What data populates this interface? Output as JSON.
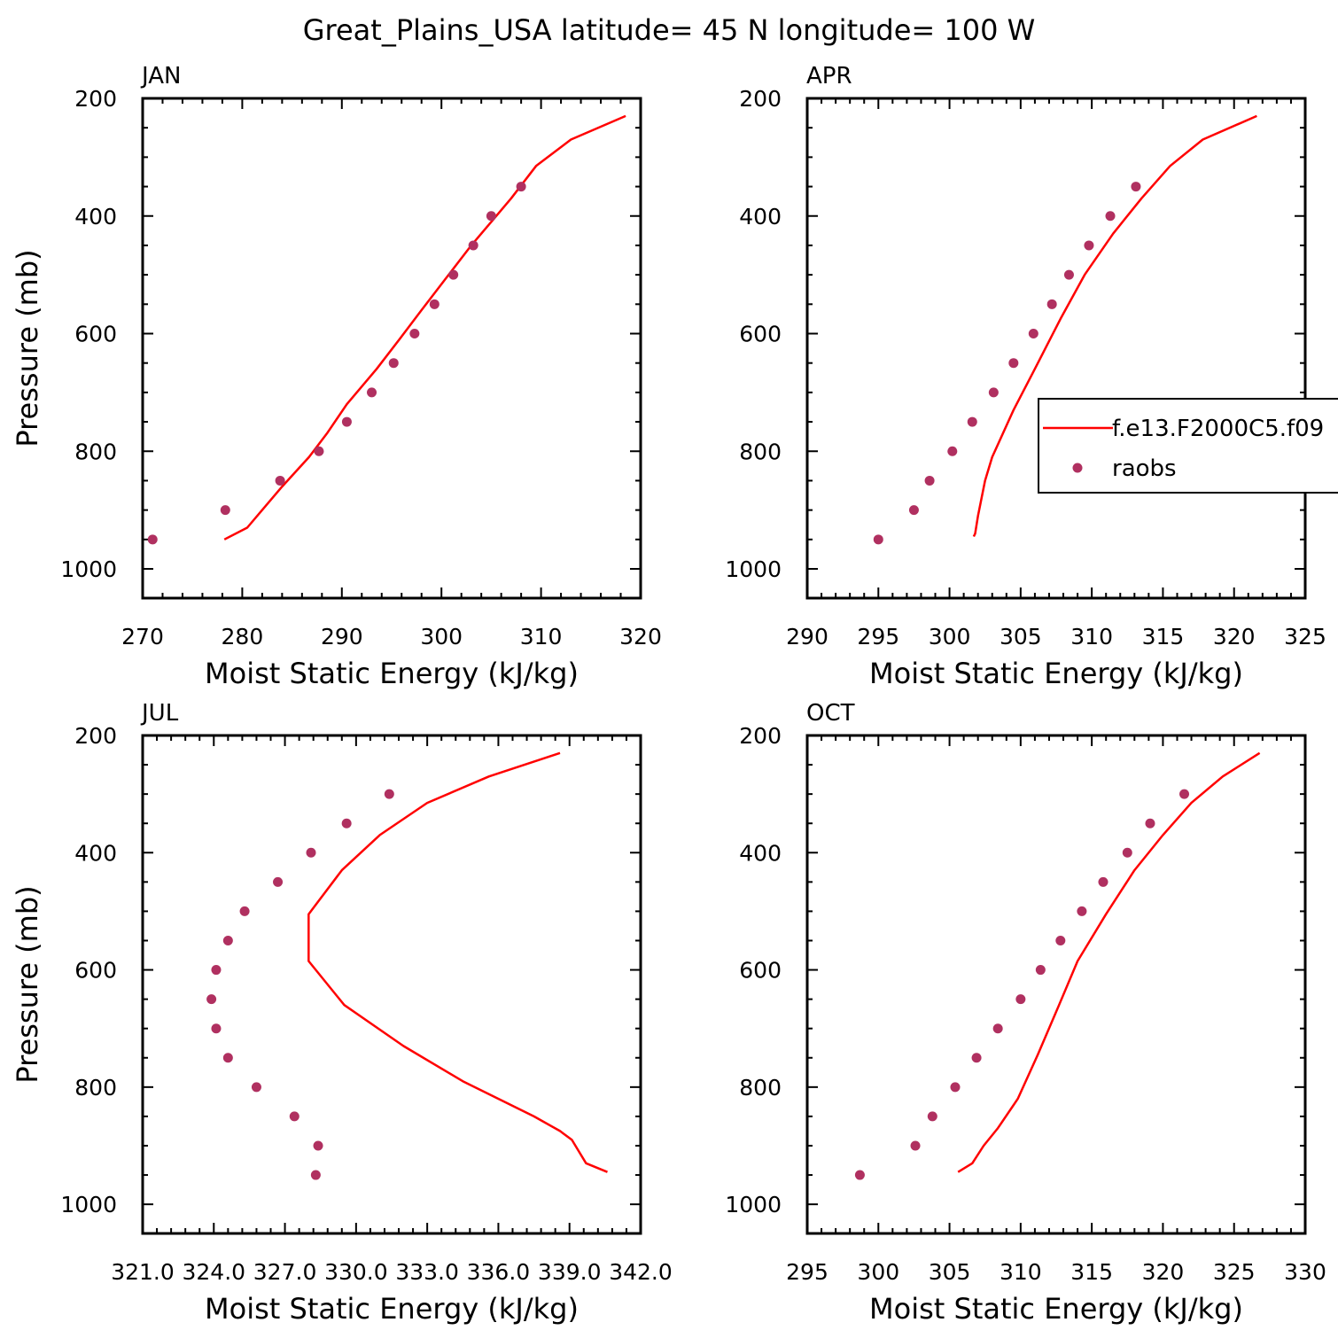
{
  "figure_title": "Great_Plains_USA  latitude= 45 N longitude= 100 W",
  "colors": {
    "model": "#ff0000",
    "obs": "#b03060",
    "axis": "#000000"
  },
  "legend": {
    "model_label": "f.e13.F2000C5.f09",
    "obs_label": "raobs"
  },
  "chart_data": [
    {
      "type": "line",
      "panel": "JAN",
      "xlabel": "Moist Static Energy (kJ/kg)",
      "ylabel": "Pressure (mb)",
      "xlim": [
        270,
        320
      ],
      "ylim": [
        1000,
        200
      ],
      "xticks": [
        "270",
        "280",
        "290",
        "300",
        "310",
        "320"
      ],
      "yticks": [
        "200",
        "400",
        "600",
        "800",
        "1000"
      ],
      "series": [
        {
          "name": "f.e13.F2000C5.f09",
          "kind": "line",
          "x": [
            318.5,
            313.0,
            309.5,
            307.0,
            305.0,
            303.0,
            300.5,
            298.0,
            296.0,
            293.5,
            290.5,
            288.5,
            286.7,
            284.0,
            282.0,
            280.5,
            278.2
          ],
          "y": [
            230,
            270,
            315,
            370,
            410,
            450,
            505,
            560,
            605,
            660,
            720,
            770,
            810,
            860,
            900,
            930,
            950
          ]
        },
        {
          "name": "raobs",
          "kind": "scatter",
          "x": [
            308.0,
            305.0,
            303.2,
            301.2,
            299.3,
            297.3,
            295.2,
            293.0,
            290.5,
            287.7,
            283.8,
            278.3,
            271.0
          ],
          "y": [
            350,
            400,
            450,
            500,
            550,
            600,
            650,
            700,
            750,
            800,
            850,
            900,
            950
          ]
        }
      ]
    },
    {
      "type": "line",
      "panel": "APR",
      "xlabel": "Moist Static Energy (kJ/kg)",
      "ylabel": "",
      "xlim": [
        290,
        325
      ],
      "ylim": [
        1000,
        200
      ],
      "xticks": [
        "290",
        "295",
        "300",
        "305",
        "310",
        "315",
        "320",
        "325"
      ],
      "yticks": [
        "200",
        "400",
        "600",
        "800",
        "1000"
      ],
      "legend_shown": true,
      "series": [
        {
          "name": "f.e13.F2000C5.f09",
          "kind": "line",
          "x": [
            321.6,
            317.8,
            315.5,
            313.5,
            311.5,
            309.5,
            307.8,
            306.0,
            304.5,
            303.0,
            302.5,
            302.0,
            301.8,
            301.7
          ],
          "y": [
            230,
            270,
            315,
            370,
            430,
            500,
            575,
            660,
            730,
            810,
            850,
            910,
            940,
            945
          ]
        },
        {
          "name": "raobs",
          "kind": "scatter",
          "x": [
            313.1,
            311.3,
            309.8,
            308.4,
            307.2,
            305.9,
            304.5,
            303.1,
            301.6,
            300.2,
            298.6,
            297.5,
            295.0
          ],
          "y": [
            350,
            400,
            450,
            500,
            550,
            600,
            650,
            700,
            750,
            800,
            850,
            900,
            950
          ]
        }
      ]
    },
    {
      "type": "line",
      "panel": "JUL",
      "xlabel": "Moist Static Energy (kJ/kg)",
      "ylabel": "Pressure (mb)",
      "xlim": [
        321.0,
        342.0
      ],
      "ylim": [
        1000,
        200
      ],
      "xticks": [
        "321.0",
        "324.0",
        "327.0",
        "330.0",
        "333.0",
        "336.0",
        "339.0",
        "342.0"
      ],
      "yticks": [
        "200",
        "400",
        "600",
        "800",
        "1000"
      ],
      "series": [
        {
          "name": "f.e13.F2000C5.f09",
          "kind": "line",
          "x": [
            338.6,
            335.6,
            333.0,
            331.0,
            329.4,
            328.0,
            328.0,
            328.0,
            329.5,
            332.0,
            334.5,
            337.5,
            338.6,
            339.1,
            339.4,
            339.7,
            340.6
          ],
          "y": [
            230,
            270,
            315,
            370,
            430,
            505,
            560,
            585,
            660,
            730,
            790,
            850,
            875,
            890,
            910,
            930,
            945
          ]
        },
        {
          "name": "raobs",
          "kind": "scatter",
          "x": [
            331.4,
            329.6,
            328.1,
            326.7,
            325.3,
            324.6,
            324.1,
            323.9,
            324.1,
            324.6,
            325.8,
            327.4,
            328.4,
            328.3
          ],
          "y": [
            300,
            350,
            400,
            450,
            500,
            550,
            600,
            650,
            700,
            750,
            800,
            850,
            900,
            950
          ]
        }
      ]
    },
    {
      "type": "line",
      "panel": "OCT",
      "xlabel": "Moist Static Energy (kJ/kg)",
      "ylabel": "",
      "xlim": [
        295,
        330
      ],
      "ylim": [
        1000,
        200
      ],
      "xticks": [
        "295",
        "300",
        "305",
        "310",
        "315",
        "320",
        "325",
        "330"
      ],
      "yticks": [
        "200",
        "400",
        "600",
        "800",
        "1000"
      ],
      "series": [
        {
          "name": "f.e13.F2000C5.f09",
          "kind": "line",
          "x": [
            326.8,
            324.2,
            322.0,
            320.0,
            318.0,
            316.0,
            314.0,
            312.7,
            311.2,
            309.8,
            308.4,
            307.4,
            306.6,
            305.6
          ],
          "y": [
            230,
            270,
            315,
            370,
            430,
            505,
            585,
            660,
            745,
            820,
            870,
            900,
            930,
            945
          ]
        },
        {
          "name": "raobs",
          "kind": "scatter",
          "x": [
            321.5,
            319.1,
            317.5,
            315.8,
            314.3,
            312.8,
            311.4,
            310.0,
            308.4,
            306.9,
            305.4,
            303.8,
            302.6,
            298.7
          ],
          "y": [
            300,
            350,
            400,
            450,
            500,
            550,
            600,
            650,
            700,
            750,
            800,
            850,
            900,
            950
          ]
        }
      ]
    }
  ]
}
